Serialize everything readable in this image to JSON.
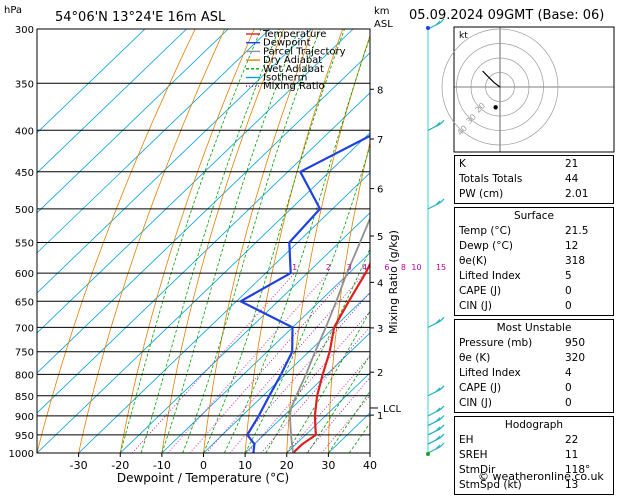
{
  "chart_data": {
    "type": "skew-t",
    "title": "54°06'N  13°24'E  16m  ASL",
    "date_label": "05.09.2024  09GMT  (Base: 06)",
    "xlabel": "Dewpoint / Temperature (°C)",
    "ylabel_left": "hPa",
    "ylabel_right_top": "km",
    "ylabel_right_bottom": "ASL",
    "mixing_ratio_label": "Mixing Ratio (g/kg)",
    "pressure_levels": [
      300,
      350,
      400,
      450,
      500,
      550,
      600,
      650,
      700,
      750,
      800,
      850,
      900,
      950,
      1000
    ],
    "temp_ticks": [
      -30,
      -20,
      -10,
      0,
      10,
      20,
      30,
      40
    ],
    "xlim": [
      -40,
      40
    ],
    "ylim": [
      1000,
      300
    ],
    "km_ticks": [
      {
        "label": "8",
        "p": 356
      },
      {
        "label": "7",
        "p": 410
      },
      {
        "label": "6",
        "p": 472
      },
      {
        "label": "5",
        "p": 540
      },
      {
        "label": "4",
        "p": 616
      },
      {
        "label": "3",
        "p": 701
      },
      {
        "label": "2",
        "p": 795
      },
      {
        "label": "1",
        "p": 898
      }
    ],
    "lcl": {
      "label": "LCL",
      "p": 880
    },
    "mixing_ratio_lines": [
      "1",
      "2",
      "3",
      "4",
      "6",
      "8",
      "10",
      "15",
      "20",
      "25"
    ],
    "legend": [
      {
        "name": "Temperature",
        "color": "#e02020"
      },
      {
        "name": "Dewpoint",
        "color": "#2040e0"
      },
      {
        "name": "Parcel Trajectory",
        "color": "#909090"
      },
      {
        "name": "Dry Adiabat",
        "color": "#e08000"
      },
      {
        "name": "Wet Adiabat",
        "color": "#00a000"
      },
      {
        "name": "Isotherm",
        "color": "#00a0e0"
      },
      {
        "name": "Mixing Ratio",
        "color": "#c000a0"
      }
    ],
    "series": [
      {
        "name": "Temperature",
        "points": [
          [
            1000,
            21.5
          ],
          [
            975,
            21.5
          ],
          [
            950,
            22.5
          ],
          [
            925,
            20
          ],
          [
            900,
            17.5
          ],
          [
            850,
            13
          ],
          [
            800,
            9
          ],
          [
            750,
            5
          ],
          [
            700,
            0
          ],
          [
            650,
            -3
          ],
          [
            600,
            -6
          ],
          [
            550,
            -10
          ],
          [
            500,
            -14
          ],
          [
            450,
            -19
          ],
          [
            400,
            -25
          ],
          [
            350,
            -32
          ],
          [
            300,
            -39
          ]
        ]
      },
      {
        "name": "Dewpoint",
        "points": [
          [
            1000,
            12
          ],
          [
            975,
            10
          ],
          [
            950,
            6
          ],
          [
            900,
            4
          ],
          [
            850,
            1.5
          ],
          [
            800,
            -1
          ],
          [
            750,
            -4
          ],
          [
            700,
            -10
          ],
          [
            650,
            -29
          ],
          [
            600,
            -24
          ],
          [
            550,
            -32
          ],
          [
            500,
            -33
          ],
          [
            450,
            -47
          ],
          [
            400,
            -38
          ],
          [
            350,
            -42
          ],
          [
            300,
            -50
          ]
        ]
      },
      {
        "name": "Parcel Trajectory",
        "points": [
          [
            1000,
            21.5
          ],
          [
            950,
            16.5
          ],
          [
            900,
            11.5
          ],
          [
            880,
            9.8
          ],
          [
            850,
            8
          ],
          [
            800,
            5
          ],
          [
            750,
            1.5
          ],
          [
            700,
            -2
          ],
          [
            650,
            -6
          ],
          [
            600,
            -10.5
          ],
          [
            550,
            -15
          ],
          [
            500,
            -20
          ],
          [
            450,
            -26
          ],
          [
            400,
            -33
          ],
          [
            350,
            -41
          ],
          [
            300,
            -50
          ]
        ]
      }
    ],
    "wind_barb_levels": [
      1000,
      975,
      950,
      925,
      900,
      850,
      700,
      500,
      400,
      300
    ],
    "hodograph": {
      "label": "kt",
      "ring_labels": [
        "20",
        "30",
        "40"
      ],
      "trace": [
        [
          0,
          0
        ],
        [
          -4,
          3
        ],
        [
          -9,
          8
        ],
        [
          -12,
          11
        ]
      ],
      "storm_motion_point": [
        -3,
        -14
      ]
    }
  },
  "indices": [
    {
      "label": "K",
      "value": "21"
    },
    {
      "label": "Totals Totals",
      "value": "44"
    },
    {
      "label": "PW (cm)",
      "value": "2.01"
    }
  ],
  "surface": {
    "title": "Surface",
    "rows": [
      {
        "label": "Temp (°C)",
        "value": "21.5"
      },
      {
        "label": "Dewp (°C)",
        "value": "12"
      },
      {
        "label": "θe(K)",
        "value": "318"
      },
      {
        "label": "Lifted Index",
        "value": "5"
      },
      {
        "label": "CAPE (J)",
        "value": "0"
      },
      {
        "label": "CIN (J)",
        "value": "0"
      }
    ]
  },
  "most_unstable": {
    "title": "Most Unstable",
    "rows": [
      {
        "label": "Pressure (mb)",
        "value": "950"
      },
      {
        "label": "θe (K)",
        "value": "320"
      },
      {
        "label": "Lifted Index",
        "value": "4"
      },
      {
        "label": "CAPE (J)",
        "value": "0"
      },
      {
        "label": "CIN (J)",
        "value": "0"
      }
    ]
  },
  "hodograph_table": {
    "title": "Hodograph",
    "rows": [
      {
        "label": "EH",
        "value": "22"
      },
      {
        "label": "SREH",
        "value": "11"
      },
      {
        "label": "StmDir",
        "value": "118°"
      },
      {
        "label": "StmSpd (kt)",
        "value": "13"
      }
    ]
  },
  "footer": "© weatheronline.co.uk"
}
